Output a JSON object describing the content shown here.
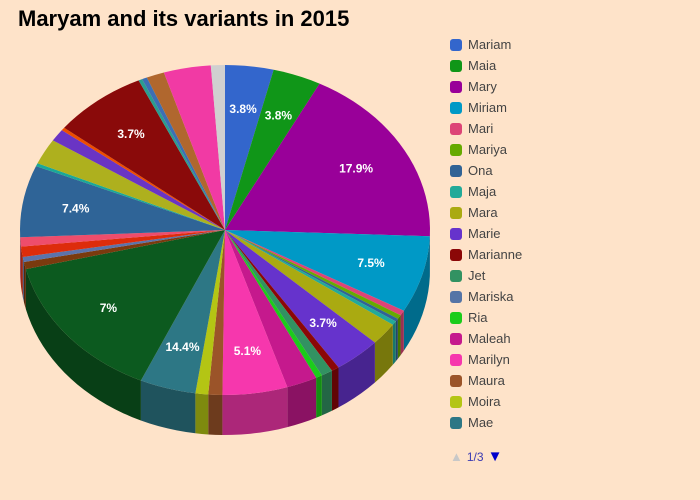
{
  "chart_data": {
    "type": "pie",
    "title": "Maryam and its variants in 2015",
    "slices": [
      {
        "label": "Mariam",
        "value": 3.8,
        "color": "#3366cc"
      },
      {
        "label": "Maia",
        "value": 3.8,
        "color": "#109618"
      },
      {
        "label": "Mary",
        "value": 17.9,
        "color": "#990099"
      },
      {
        "label": "Miriam",
        "value": 7.5,
        "color": "#0099c6"
      },
      {
        "label": "Mari",
        "value": 0.5,
        "color": "#dd4477"
      },
      {
        "label": "Mariya",
        "value": 0.4,
        "color": "#66aa00"
      },
      {
        "label": "Ona",
        "value": 0.3,
        "color": "#316395"
      },
      {
        "label": "Maja",
        "value": 0.4,
        "color": "#22aa99"
      },
      {
        "label": "Mara",
        "value": 2.2,
        "color": "#aaaa11"
      },
      {
        "label": "Marie",
        "value": 3.7,
        "color": "#6633cc"
      },
      {
        "label": "Marianne",
        "value": 0.6,
        "color": "#8b0707"
      },
      {
        "label": "Jet",
        "value": 0.9,
        "color": "#329262"
      },
      {
        "label": "Ria",
        "value": 0.5,
        "color": "#1bcc1b"
      },
      {
        "label": "Maleah",
        "value": 2.4,
        "color": "#c5198d"
      },
      {
        "label": "Marilyn",
        "value": 5.1,
        "color": "#f637ad"
      },
      {
        "label": "Maura",
        "value": 1.1,
        "color": "#9b5429"
      },
      {
        "label": "Moira",
        "value": 1.0,
        "color": "#b4c514"
      },
      {
        "label": "Mae",
        "value": 4.4,
        "color": "#2d7785"
      },
      {
        "label": "",
        "value": 14.4,
        "color": "#0c5a1f"
      },
      {
        "label": "",
        "value": 0.7,
        "color": "#7a3a0e"
      },
      {
        "label": "",
        "value": 0.5,
        "color": "#5c73aa"
      },
      {
        "label": "",
        "value": 1.0,
        "color": "#dd2c0b"
      },
      {
        "label": "",
        "value": 0.9,
        "color": "#ee4d6c"
      },
      {
        "label": "",
        "value": 7.0,
        "color": "#2f6497"
      },
      {
        "label": "",
        "value": 0.3,
        "color": "#1aa898"
      },
      {
        "label": "",
        "value": 2.5,
        "color": "#aeb01e"
      },
      {
        "label": "",
        "value": 1.2,
        "color": "#6a34c4"
      },
      {
        "label": "",
        "value": 0.3,
        "color": "#ee4d00"
      },
      {
        "label": "",
        "value": 7.4,
        "color": "#8a0a0a"
      },
      {
        "label": "",
        "value": 0.3,
        "color": "#2a9d8f"
      },
      {
        "label": "",
        "value": 0.4,
        "color": "#3c6fb4"
      },
      {
        "label": "",
        "value": 1.4,
        "color": "#b0672e"
      },
      {
        "label": "",
        "value": 3.7,
        "color": "#f13aa4"
      },
      {
        "label": "",
        "value": 1.1,
        "color": "#d0d0d0"
      }
    ],
    "data_labels": [
      "3.8%",
      "3.8%",
      "17.9%",
      "7.5%",
      "3.7%",
      "5.1%",
      "14.4%",
      "7%",
      "7.4%",
      "3.7%"
    ],
    "legend": {
      "placement": "right",
      "items": [
        "Mariam",
        "Maia",
        "Mary",
        "Miriam",
        "Mari",
        "Mariya",
        "Ona",
        "Maja",
        "Mara",
        "Marie",
        "Marianne",
        "Jet",
        "Mariska",
        "Ria",
        "Maleah",
        "Marilyn",
        "Maura",
        "Moira",
        "Mae"
      ],
      "colors": [
        "#3366cc",
        "#109618",
        "#990099",
        "#0099c6",
        "#dd4477",
        "#66aa00",
        "#316395",
        "#22aa99",
        "#aaaa11",
        "#6633cc",
        "#8b0707",
        "#329262",
        "#5574a6",
        "#1bcc1b",
        "#c5198d",
        "#f637ad",
        "#9b5429",
        "#b4c514",
        "#2d7785"
      ]
    }
  },
  "pager": {
    "text": "1/3",
    "up_icon": "triangle-up-icon",
    "down_icon": "triangle-down-icon"
  }
}
